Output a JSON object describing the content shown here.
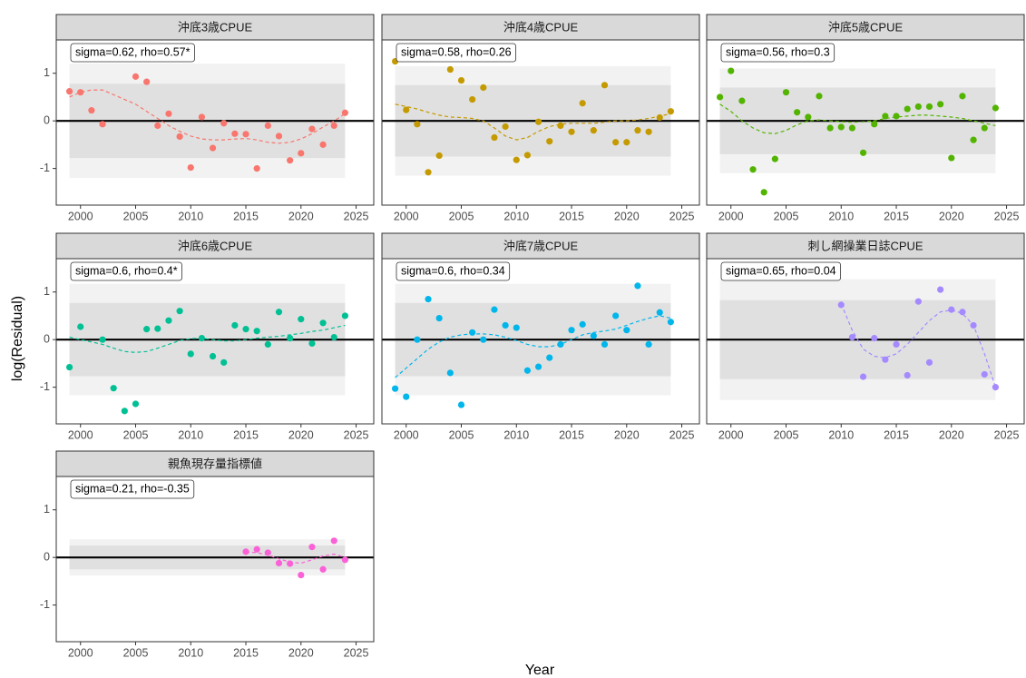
{
  "axis_labels": {
    "x": "Year",
    "y": "log(Residual)"
  },
  "chart_data": [
    {
      "type": "scatter",
      "title": "沖底3歳CPUE",
      "annotation": "sigma=0.62, rho=0.57*",
      "color": "#F8766D",
      "x": [
        1999,
        2000,
        2001,
        2002,
        2005,
        2006,
        2007,
        2008,
        2009,
        2010,
        2011,
        2012,
        2013,
        2014,
        2015,
        2016,
        2017,
        2018,
        2019,
        2020,
        2021,
        2022,
        2023,
        2024
      ],
      "values": [
        0.62,
        0.6,
        0.22,
        -0.07,
        0.93,
        0.82,
        -0.1,
        0.15,
        -0.33,
        -0.98,
        0.08,
        -0.57,
        -0.05,
        -0.27,
        -0.28,
        -1.0,
        -0.1,
        -0.32,
        -0.83,
        -0.68,
        -0.17,
        -0.5,
        -0.1,
        0.17
      ],
      "trend": [
        0.5,
        0.6,
        0.65,
        0.65,
        0.35,
        0.2,
        0.05,
        -0.1,
        -0.22,
        -0.32,
        -0.38,
        -0.4,
        -0.4,
        -0.38,
        -0.37,
        -0.4,
        -0.45,
        -0.47,
        -0.45,
        -0.38,
        -0.27,
        -0.13,
        0.0,
        0.15
      ],
      "band_x": [
        1999,
        2024
      ],
      "band_inner": 0.78,
      "band_outer": 1.2,
      "xlim": [
        1997.8,
        2026.6
      ],
      "ylim": [
        -1.77,
        1.7
      ],
      "xticks": [
        2000,
        2005,
        2010,
        2015,
        2020,
        2025
      ],
      "yticks": [
        -1,
        0,
        1
      ]
    },
    {
      "type": "scatter",
      "title": "沖底4歳CPUE",
      "annotation": "sigma=0.58, rho=0.26",
      "color": "#C49A00",
      "x": [
        1999,
        2000,
        2001,
        2002,
        2003,
        2004,
        2005,
        2006,
        2007,
        2008,
        2009,
        2010,
        2011,
        2012,
        2013,
        2014,
        2015,
        2016,
        2017,
        2018,
        2019,
        2020,
        2021,
        2022,
        2023,
        2024
      ],
      "values": [
        1.25,
        0.23,
        -0.07,
        -1.08,
        -0.73,
        1.08,
        0.85,
        0.45,
        0.7,
        -0.35,
        -0.12,
        -0.82,
        -0.72,
        -0.02,
        -0.43,
        -0.1,
        -0.23,
        0.37,
        -0.2,
        0.75,
        -0.45,
        -0.45,
        -0.2,
        -0.23,
        0.07,
        0.2
      ],
      "trend": [
        0.35,
        0.3,
        0.25,
        0.18,
        0.12,
        0.08,
        0.07,
        0.05,
        0.0,
        -0.15,
        -0.32,
        -0.4,
        -0.35,
        -0.22,
        -0.12,
        -0.07,
        -0.05,
        -0.05,
        -0.05,
        -0.03,
        0.0,
        0.0,
        0.02,
        0.05,
        0.1,
        0.15
      ],
      "band_x": [
        1999,
        2024
      ],
      "band_inner": 0.75,
      "band_outer": 1.15,
      "xlim": [
        1997.8,
        2026.6
      ],
      "ylim": [
        -1.77,
        1.7
      ],
      "xticks": [
        2000,
        2005,
        2010,
        2015,
        2020,
        2025
      ],
      "yticks": [
        -1,
        0,
        1
      ]
    },
    {
      "type": "scatter",
      "title": "沖底5歳CPUE",
      "annotation": "sigma=0.56, rho=0.3",
      "color": "#53B400",
      "x": [
        1999,
        2000,
        2001,
        2002,
        2003,
        2004,
        2005,
        2006,
        2007,
        2008,
        2009,
        2010,
        2011,
        2012,
        2013,
        2014,
        2015,
        2016,
        2017,
        2018,
        2019,
        2020,
        2021,
        2022,
        2023,
        2024
      ],
      "values": [
        0.5,
        1.05,
        0.42,
        -1.02,
        -1.5,
        -0.8,
        0.6,
        0.18,
        0.08,
        0.52,
        -0.15,
        -0.13,
        -0.15,
        -0.67,
        -0.07,
        0.1,
        0.1,
        0.25,
        0.3,
        0.3,
        0.35,
        -0.78,
        0.52,
        -0.4,
        -0.15,
        0.27
      ],
      "trend": [
        0.35,
        0.2,
        0.0,
        -0.15,
        -0.25,
        -0.27,
        -0.2,
        -0.08,
        0.0,
        0.02,
        0.0,
        -0.02,
        -0.03,
        -0.02,
        0.0,
        0.05,
        0.08,
        0.1,
        0.12,
        0.12,
        0.1,
        0.08,
        0.05,
        0.0,
        -0.05,
        -0.1
      ],
      "band_x": [
        1999,
        2024
      ],
      "band_inner": 0.7,
      "band_outer": 1.1,
      "xlim": [
        1997.8,
        2026.6
      ],
      "ylim": [
        -1.77,
        1.7
      ],
      "xticks": [
        2000,
        2005,
        2010,
        2015,
        2020,
        2025
      ],
      "yticks": [
        -1,
        0,
        1
      ]
    },
    {
      "type": "scatter",
      "title": "沖底6歳CPUE",
      "annotation": "sigma=0.6, rho=0.4*",
      "color": "#00C094",
      "x": [
        1999,
        2000,
        2002,
        2003,
        2004,
        2005,
        2006,
        2007,
        2008,
        2009,
        2010,
        2011,
        2012,
        2013,
        2014,
        2015,
        2016,
        2017,
        2018,
        2019,
        2020,
        2021,
        2022,
        2023,
        2024
      ],
      "values": [
        -0.58,
        0.27,
        0.0,
        -1.02,
        -1.5,
        -1.35,
        0.22,
        0.23,
        0.4,
        0.6,
        -0.3,
        0.03,
        -0.35,
        -0.48,
        0.3,
        0.22,
        0.18,
        -0.1,
        0.58,
        0.03,
        0.43,
        -0.08,
        0.35,
        0.05,
        0.5
      ],
      "trend": [
        0.05,
        0.0,
        -0.1,
        -0.18,
        -0.25,
        -0.27,
        -0.25,
        -0.18,
        -0.1,
        -0.02,
        0.02,
        0.03,
        0.0,
        -0.03,
        -0.03,
        0.0,
        0.03,
        0.05,
        0.07,
        0.1,
        0.13,
        0.17,
        0.2,
        0.25,
        0.3
      ],
      "band_x": [
        1999,
        2024
      ],
      "band_inner": 0.77,
      "band_outer": 1.17,
      "xlim": [
        1997.8,
        2026.6
      ],
      "ylim": [
        -1.77,
        1.7
      ],
      "xticks": [
        2000,
        2005,
        2010,
        2015,
        2020,
        2025
      ],
      "yticks": [
        -1,
        0,
        1
      ]
    },
    {
      "type": "scatter",
      "title": "沖底7歳CPUE",
      "annotation": "sigma=0.6, rho=0.34",
      "color": "#00B6EB",
      "x": [
        1999,
        2000,
        2001,
        2002,
        2003,
        2004,
        2005,
        2006,
        2007,
        2008,
        2009,
        2010,
        2011,
        2012,
        2013,
        2014,
        2015,
        2016,
        2017,
        2018,
        2019,
        2020,
        2021,
        2022,
        2023,
        2024
      ],
      "values": [
        -1.03,
        -1.2,
        0.0,
        0.85,
        0.45,
        -0.7,
        -1.37,
        0.15,
        0.0,
        0.63,
        0.3,
        0.25,
        -0.65,
        -0.57,
        -0.38,
        -0.1,
        0.2,
        0.32,
        0.08,
        -0.1,
        0.5,
        0.2,
        1.13,
        -0.1,
        0.57,
        0.37
      ],
      "trend": [
        -0.8,
        -0.6,
        -0.4,
        -0.2,
        -0.05,
        0.05,
        0.1,
        0.12,
        0.12,
        0.1,
        0.05,
        -0.02,
        -0.1,
        -0.15,
        -0.15,
        -0.1,
        0.0,
        0.1,
        0.15,
        0.18,
        0.22,
        0.3,
        0.38,
        0.45,
        0.5,
        0.45
      ],
      "band_x": [
        1999,
        2024
      ],
      "band_inner": 0.77,
      "band_outer": 1.17,
      "xlim": [
        1997.8,
        2026.6
      ],
      "ylim": [
        -1.77,
        1.7
      ],
      "xticks": [
        2000,
        2005,
        2010,
        2015,
        2020,
        2025
      ],
      "yticks": [
        -1,
        0,
        1
      ]
    },
    {
      "type": "scatter",
      "title": "刺し網操業日誌CPUE",
      "annotation": "sigma=0.65, rho=0.04",
      "color": "#A58AFF",
      "x": [
        2010,
        2011,
        2012,
        2013,
        2014,
        2015,
        2016,
        2017,
        2018,
        2019,
        2020,
        2021,
        2022,
        2023,
        2024
      ],
      "values": [
        0.73,
        0.05,
        -0.78,
        0.03,
        -0.42,
        -0.1,
        -0.75,
        0.8,
        -0.48,
        1.05,
        0.63,
        0.58,
        0.3,
        -0.73,
        -1.0
      ],
      "trend": [
        0.75,
        0.2,
        -0.2,
        -0.35,
        -0.38,
        -0.3,
        -0.1,
        0.15,
        0.4,
        0.58,
        0.62,
        0.55,
        0.3,
        -0.3,
        -1.0
      ],
      "band_x": [
        1999,
        2024
      ],
      "band_inner": 0.83,
      "band_outer": 1.27,
      "xlim": [
        1997.8,
        2026.6
      ],
      "ylim": [
        -1.77,
        1.7
      ],
      "xticks": [
        2000,
        2005,
        2010,
        2015,
        2020,
        2025
      ],
      "yticks": [
        -1,
        0,
        1
      ]
    },
    {
      "type": "scatter",
      "title": "親魚現存量指標値",
      "annotation": "sigma=0.21, rho=-0.35",
      "color": "#FB61D7",
      "x": [
        2015,
        2016,
        2017,
        2018,
        2019,
        2020,
        2021,
        2022,
        2023,
        2024
      ],
      "values": [
        0.12,
        0.17,
        0.1,
        -0.12,
        -0.13,
        -0.37,
        0.22,
        -0.25,
        0.35,
        -0.05
      ],
      "trend": [
        0.12,
        0.1,
        0.05,
        -0.03,
        -0.1,
        -0.12,
        -0.05,
        0.03,
        0.07,
        0.0
      ],
      "band_x": [
        1999,
        2024
      ],
      "band_inner": 0.25,
      "band_outer": 0.38,
      "xlim": [
        1997.8,
        2026.6
      ],
      "ylim": [
        -1.77,
        1.7
      ],
      "xticks": [
        2000,
        2005,
        2010,
        2015,
        2020,
        2025
      ],
      "yticks": [
        -1,
        0,
        1
      ]
    }
  ]
}
